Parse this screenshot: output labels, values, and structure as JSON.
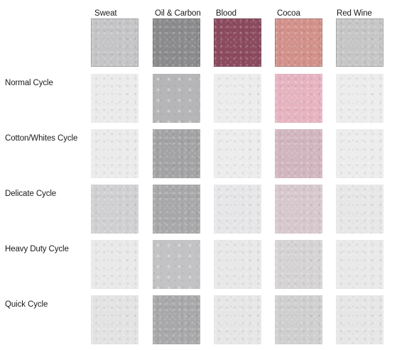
{
  "columns": [
    "Sweat",
    "Oil & Carbon",
    "Blood",
    "Cocoa",
    "Red Wine"
  ],
  "rows": [
    {
      "label": ""
    },
    {
      "label": "Normal Cycle"
    },
    {
      "label": "Cotton/Whites Cycle"
    },
    {
      "label": "Delicate Cycle"
    },
    {
      "label": "Heavy Duty Cycle"
    },
    {
      "label": "Quick Cycle"
    }
  ],
  "swatches": [
    [
      {
        "color": "#c5c4c6",
        "texture": "speckle",
        "framed": true
      },
      {
        "color": "#8b8b8d",
        "texture": "speckle",
        "framed": true
      },
      {
        "color": "#8b4a5e",
        "texture": "speckle",
        "framed": true
      },
      {
        "color": "#d2918a",
        "texture": "speckle",
        "framed": true
      },
      {
        "color": "#c6c6c7",
        "texture": "speckle",
        "framed": true
      }
    ],
    [
      {
        "color": "#ebebec",
        "texture": "speckle",
        "framed": false
      },
      {
        "color": "#b6b6b8",
        "texture": "dots",
        "framed": false
      },
      {
        "color": "#ececed",
        "texture": "speckle",
        "framed": false
      },
      {
        "color": "#e6b3c1",
        "texture": "speckle",
        "framed": false
      },
      {
        "color": "#ececed",
        "texture": "speckle",
        "framed": false
      }
    ],
    [
      {
        "color": "#ebebec",
        "texture": "speckle",
        "framed": false
      },
      {
        "color": "#a3a3a5",
        "texture": "speckle",
        "framed": false
      },
      {
        "color": "#ececed",
        "texture": "speckle",
        "framed": false
      },
      {
        "color": "#d2b6bf",
        "texture": "speckle",
        "framed": false
      },
      {
        "color": "#ececed",
        "texture": "speckle",
        "framed": false
      }
    ],
    [
      {
        "color": "#d0d0d2",
        "texture": "speckle",
        "framed": false
      },
      {
        "color": "#a8a8aa",
        "texture": "speckle",
        "framed": false
      },
      {
        "color": "#e6e6e8",
        "texture": "speckle",
        "framed": false
      },
      {
        "color": "#d7c8cd",
        "texture": "speckle",
        "framed": false
      },
      {
        "color": "#e7e7e8",
        "texture": "speckle",
        "framed": false
      }
    ],
    [
      {
        "color": "#e9e9ea",
        "texture": "speckle",
        "framed": false
      },
      {
        "color": "#c3c3c5",
        "texture": "dots",
        "framed": false
      },
      {
        "color": "#e8e8e9",
        "texture": "speckle",
        "framed": false
      },
      {
        "color": "#d6d3d5",
        "texture": "speckle",
        "framed": false
      },
      {
        "color": "#e9e9ea",
        "texture": "speckle",
        "framed": false
      }
    ],
    [
      {
        "color": "#e3e3e4",
        "texture": "speckle",
        "framed": false
      },
      {
        "color": "#a8a8aa",
        "texture": "speckle",
        "framed": false
      },
      {
        "color": "#e6e6e7",
        "texture": "speckle",
        "framed": false
      },
      {
        "color": "#cfcfd0",
        "texture": "speckle",
        "framed": false
      },
      {
        "color": "#e6e6e7",
        "texture": "speckle",
        "framed": false
      }
    ]
  ]
}
